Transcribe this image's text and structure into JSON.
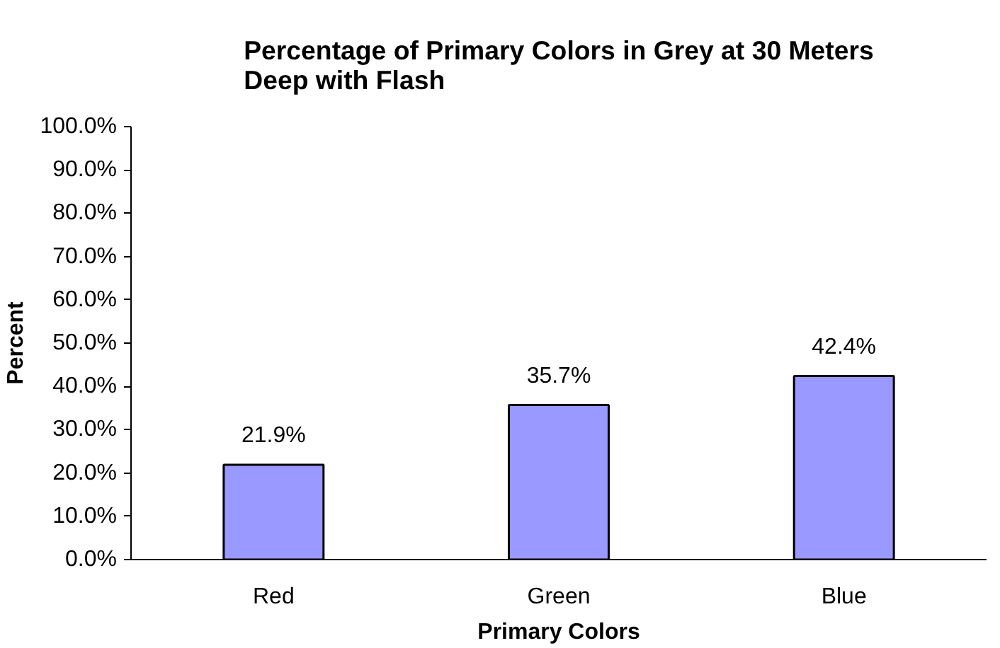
{
  "chart_data": {
    "type": "bar",
    "title": "Percentage of Primary Colors in Grey at 30 Meters Deep with Flash",
    "xlabel": "Primary Colors",
    "ylabel": "Percent",
    "categories": [
      "Red",
      "Green",
      "Blue"
    ],
    "values": [
      21.9,
      35.7,
      42.4
    ],
    "color": "#9999ff",
    "value_labels": [
      "21.9%",
      "35.7%",
      "42.4%"
    ],
    "ylim": [
      0,
      100
    ],
    "yticks": [
      {
        "value": 0,
        "label": "0.0%"
      },
      {
        "value": 10,
        "label": "10.0%"
      },
      {
        "value": 20,
        "label": "20.0%"
      },
      {
        "value": 30,
        "label": "30.0%"
      },
      {
        "value": 40,
        "label": "40.0%"
      },
      {
        "value": 50,
        "label": "50.0%"
      },
      {
        "value": 60,
        "label": "60.0%"
      },
      {
        "value": 70,
        "label": "70.0%"
      },
      {
        "value": 80,
        "label": "80.0%"
      },
      {
        "value": 90,
        "label": "90.0%"
      },
      {
        "value": 100,
        "label": "100.0%"
      }
    ],
    "grid": false
  }
}
